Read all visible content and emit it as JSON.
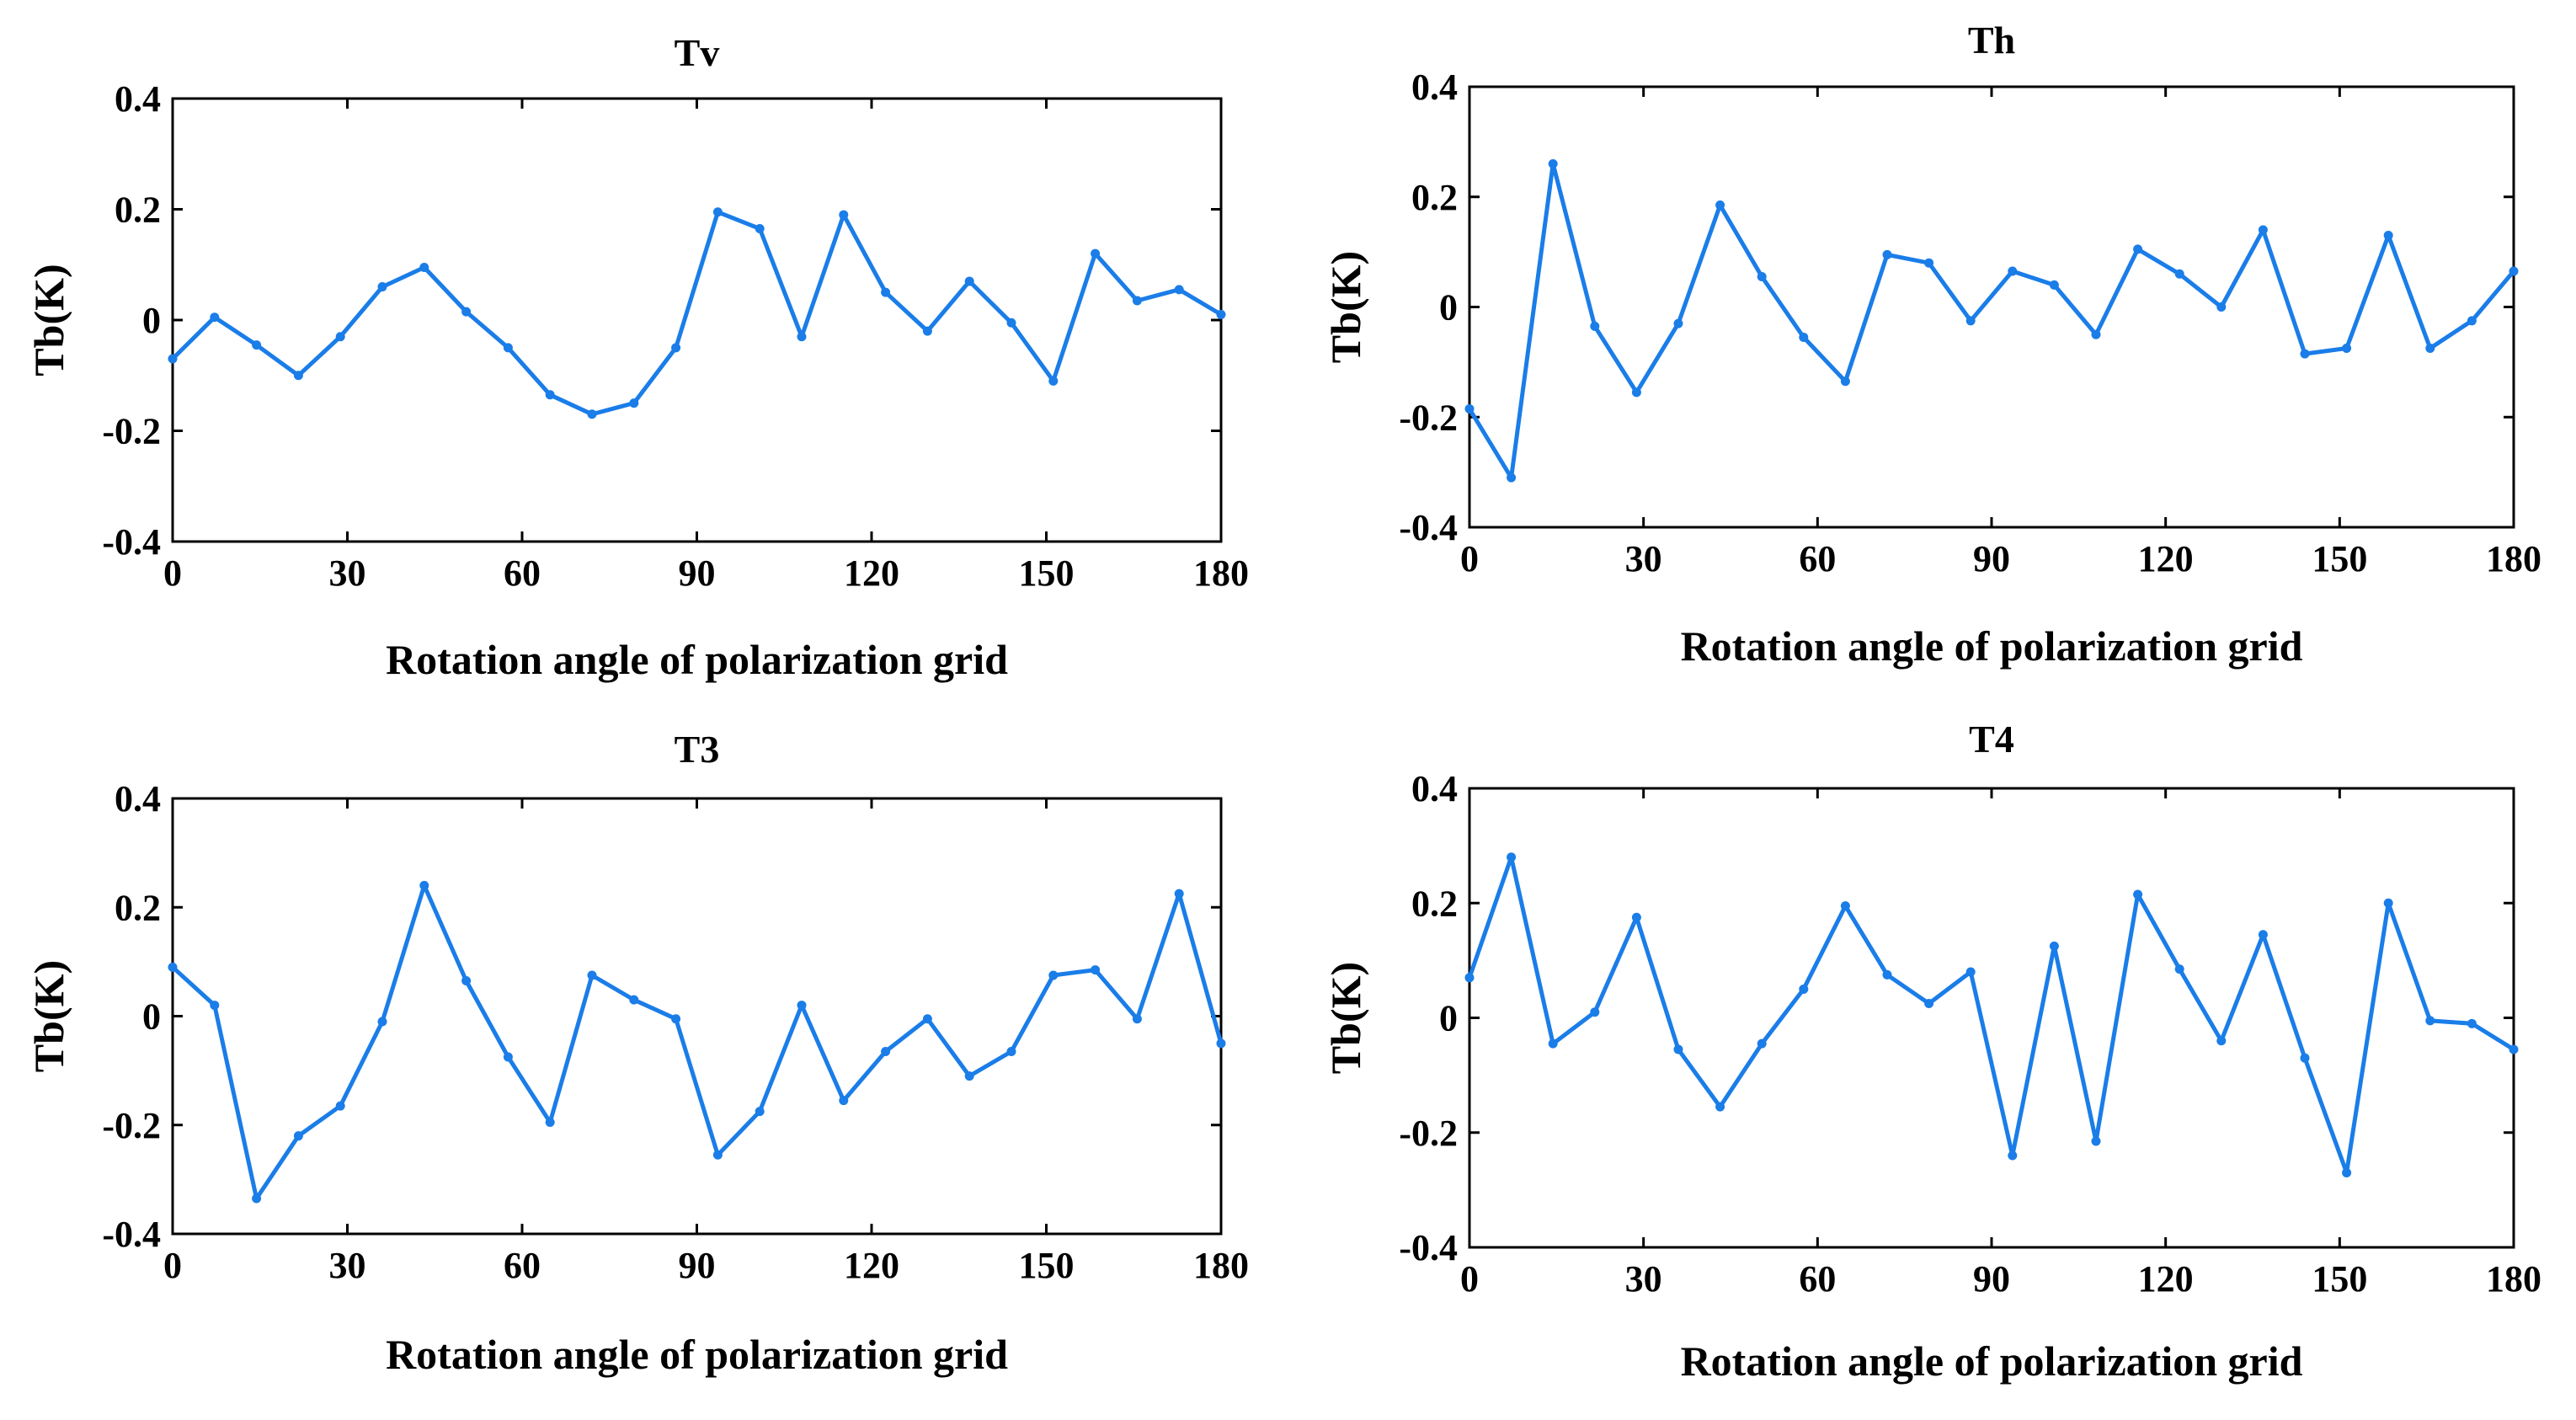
{
  "chart_data": [
    {
      "type": "line",
      "title": "Tv",
      "xlabel": "Rotation angle of polarization grid",
      "ylabel": "Tb(K)",
      "xlim": [
        0,
        180
      ],
      "ylim": [
        -0.4,
        0.4
      ],
      "xticks": [
        0,
        30,
        60,
        90,
        120,
        150,
        180
      ],
      "yticks": [
        -0.4,
        -0.2,
        0,
        0.2,
        0.4
      ],
      "xtick_labels": [
        "0",
        "30",
        "60",
        "90",
        "120",
        "150",
        "180"
      ],
      "ytick_labels": [
        "-0.4",
        "-0.2",
        "0",
        "0.2",
        "0.4"
      ],
      "color": "#1a7de8",
      "x": [
        0,
        7.2,
        14.4,
        21.6,
        28.8,
        36,
        43.2,
        50.4,
        57.6,
        64.8,
        72,
        79.2,
        86.4,
        93.6,
        100.8,
        108,
        115.2,
        122.4,
        129.6,
        136.8,
        144,
        151.2,
        158.4,
        165.6,
        172.8,
        180
      ],
      "y": [
        -0.07,
        0.005,
        -0.045,
        -0.1,
        -0.03,
        0.06,
        0.095,
        0.015,
        -0.05,
        -0.135,
        -0.17,
        -0.15,
        -0.05,
        0.195,
        0.165,
        -0.03,
        0.19,
        0.05,
        -0.02,
        0.07,
        -0.005,
        -0.11,
        0.12,
        0.035,
        0.055,
        0.01
      ]
    },
    {
      "type": "line",
      "title": "Th",
      "xlabel": "Rotation angle of polarization grid",
      "ylabel": "Tb(K)",
      "xlim": [
        0,
        180
      ],
      "ylim": [
        -0.4,
        0.4
      ],
      "xticks": [
        0,
        30,
        60,
        90,
        120,
        150,
        180
      ],
      "yticks": [
        -0.4,
        -0.2,
        0,
        0.2,
        0.4
      ],
      "xtick_labels": [
        "0",
        "30",
        "60",
        "90",
        "120",
        "150",
        "180"
      ],
      "ytick_labels": [
        "-0.4",
        "-0.2",
        "0",
        "0.2",
        "0.4"
      ],
      "color": "#1a7de8",
      "x": [
        0,
        7.2,
        14.4,
        21.6,
        28.8,
        36,
        43.2,
        50.4,
        57.6,
        64.8,
        72,
        79.2,
        86.4,
        93.6,
        100.8,
        108,
        115.2,
        122.4,
        129.6,
        136.8,
        144,
        151.2,
        158.4,
        165.6,
        172.8,
        180
      ],
      "y": [
        -0.185,
        -0.31,
        0.26,
        -0.035,
        -0.155,
        -0.03,
        0.185,
        0.055,
        -0.055,
        -0.135,
        0.095,
        0.08,
        -0.025,
        0.065,
        0.04,
        -0.05,
        0.105,
        0.06,
        0.0,
        0.14,
        -0.085,
        -0.075,
        0.13,
        -0.075,
        -0.025,
        0.065
      ]
    },
    {
      "type": "line",
      "title": "T3",
      "xlabel": "Rotation angle of polarization grid",
      "ylabel": "Tb(K)",
      "xlim": [
        0,
        180
      ],
      "ylim": [
        -0.4,
        0.4
      ],
      "xticks": [
        0,
        30,
        60,
        90,
        120,
        150,
        180
      ],
      "yticks": [
        -0.4,
        -0.2,
        0,
        0.2,
        0.4
      ],
      "xtick_labels": [
        "0",
        "30",
        "60",
        "90",
        "120",
        "150",
        "180"
      ],
      "ytick_labels": [
        "-0.4",
        "-0.2",
        "0",
        "0.2",
        "0.4"
      ],
      "color": "#1a7de8",
      "x": [
        0,
        7.2,
        14.4,
        21.6,
        28.8,
        36,
        43.2,
        50.4,
        57.6,
        64.8,
        72,
        79.2,
        86.4,
        93.6,
        100.8,
        108,
        115.2,
        122.4,
        129.6,
        136.8,
        144,
        151.2,
        158.4,
        165.6,
        172.8,
        180
      ],
      "y": [
        0.09,
        0.02,
        -0.335,
        -0.22,
        -0.165,
        -0.01,
        0.24,
        0.065,
        -0.075,
        -0.195,
        0.075,
        0.03,
        -0.005,
        -0.255,
        -0.175,
        0.02,
        -0.155,
        -0.065,
        -0.005,
        -0.11,
        -0.065,
        0.075,
        0.085,
        -0.005,
        0.225,
        -0.05
      ]
    },
    {
      "type": "line",
      "title": "T4",
      "xlabel": "Rotation angle of polarization grid",
      "ylabel": "Tb(K)",
      "xlim": [
        0,
        180
      ],
      "ylim": [
        -0.4,
        0.4
      ],
      "xticks": [
        0,
        30,
        60,
        90,
        120,
        150,
        180
      ],
      "yticks": [
        -0.4,
        -0.2,
        0,
        0.2,
        0.4
      ],
      "xtick_labels": [
        "0",
        "30",
        "60",
        "90",
        "120",
        "150",
        "180"
      ],
      "ytick_labels": [
        "-0.4",
        "-0.2",
        "0",
        "0.2",
        "0.4"
      ],
      "color": "#1a7de8",
      "x": [
        0,
        7.2,
        14.4,
        21.6,
        28.8,
        36,
        43.2,
        50.4,
        57.6,
        64.8,
        72,
        79.2,
        86.4,
        93.6,
        100.8,
        108,
        115.2,
        122.4,
        129.6,
        136.8,
        144,
        151.2,
        158.4,
        165.6,
        172.8,
        180
      ],
      "y": [
        0.07,
        0.28,
        -0.045,
        0.01,
        0.175,
        -0.055,
        -0.155,
        -0.045,
        0.05,
        0.195,
        0.075,
        0.025,
        0.08,
        -0.24,
        0.125,
        -0.215,
        0.215,
        0.085,
        -0.04,
        0.145,
        -0.07,
        -0.27,
        0.2,
        -0.005,
        -0.01,
        -0.055
      ]
    }
  ]
}
